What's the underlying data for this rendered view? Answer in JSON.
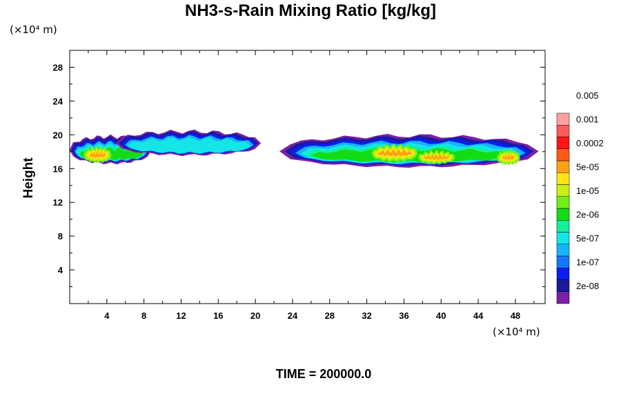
{
  "chart_data": {
    "type": "heatmap",
    "title": "NH3-s-Rain Mixing Ratio [kg/kg]",
    "ylabel": "Height",
    "xunit": "(×10⁴ m)",
    "yunit": "(×10⁴ m)",
    "xlim": [
      0,
      51.2
    ],
    "ylim": [
      0,
      30
    ],
    "x_ticks": [
      4,
      8,
      12,
      16,
      20,
      24,
      28,
      32,
      36,
      40,
      44,
      48
    ],
    "y_ticks": [
      4,
      8,
      12,
      16,
      20,
      24,
      28
    ],
    "legend": {
      "labels": [
        "2e-08",
        "1e-07",
        "5e-07",
        "2e-06",
        "1e-05",
        "5e-05",
        "0.0002",
        "0.001",
        "0.005"
      ],
      "colors": [
        "#7a1fa8",
        "#1a1a9c",
        "#0a1ef0",
        "#1478ff",
        "#14b4ff",
        "#14e6e6",
        "#14f09a",
        "#14dc14",
        "#6ef014",
        "#c8f014",
        "#ffe614",
        "#ffa014",
        "#ff5a14",
        "#ff1414",
        "#ff5a5a",
        "#ffa0a0"
      ]
    },
    "cloud_bands": [
      {
        "x_range": [
          0,
          8.8
        ],
        "z_range": [
          16.6,
          19.8
        ],
        "max_level": "0.0002"
      },
      {
        "x_range": [
          5,
          20.6
        ],
        "z_range": [
          17.6,
          20.4
        ],
        "max_level": "2e-06"
      },
      {
        "x_range": [
          22.6,
          50.5
        ],
        "z_range": [
          16.2,
          19.9
        ],
        "max_level": "0.0002"
      }
    ],
    "footer": "TIME = 200000.0"
  }
}
